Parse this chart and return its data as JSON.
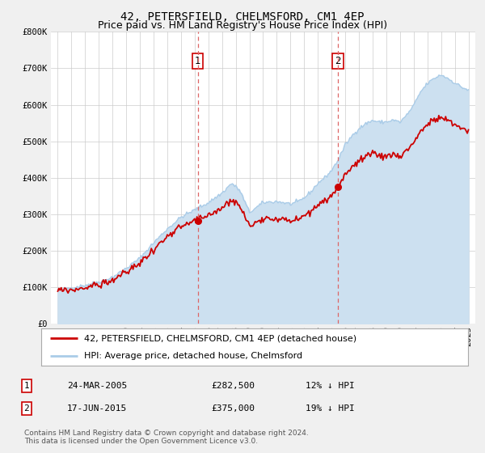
{
  "title": "42, PETERSFIELD, CHELMSFORD, CM1 4EP",
  "subtitle": "Price paid vs. HM Land Registry's House Price Index (HPI)",
  "ylim": [
    0,
    800000
  ],
  "yticks": [
    0,
    100000,
    200000,
    300000,
    400000,
    500000,
    600000,
    700000,
    800000
  ],
  "ytick_labels": [
    "£0",
    "£100K",
    "£200K",
    "£300K",
    "£400K",
    "£500K",
    "£600K",
    "£700K",
    "£800K"
  ],
  "xlim_start": 1994.5,
  "xlim_end": 2025.5,
  "hpi_color": "#aacce8",
  "hpi_fill_color": "#cce0f0",
  "price_color": "#cc0000",
  "vline_color": "#dd6666",
  "marker1_date": 2005.22,
  "marker1_price": 282500,
  "marker1_label": "1",
  "marker2_date": 2015.46,
  "marker2_price": 375000,
  "marker2_label": "2",
  "legend_line1": "42, PETERSFIELD, CHELMSFORD, CM1 4EP (detached house)",
  "legend_line2": "HPI: Average price, detached house, Chelmsford",
  "table_row1_num": "1",
  "table_row1_date": "24-MAR-2005",
  "table_row1_price": "£282,500",
  "table_row1_hpi": "12% ↓ HPI",
  "table_row2_num": "2",
  "table_row2_date": "17-JUN-2015",
  "table_row2_price": "£375,000",
  "table_row2_hpi": "19% ↓ HPI",
  "footnote1": "Contains HM Land Registry data © Crown copyright and database right 2024.",
  "footnote2": "This data is licensed under the Open Government Licence v3.0.",
  "bg_color": "#f0f0f0",
  "plot_bg_color": "#ffffff",
  "grid_color": "#cccccc",
  "title_fontsize": 10,
  "subtitle_fontsize": 9,
  "tick_fontsize": 7.5,
  "legend_fontsize": 8,
  "table_fontsize": 8,
  "footnote_fontsize": 6.5
}
